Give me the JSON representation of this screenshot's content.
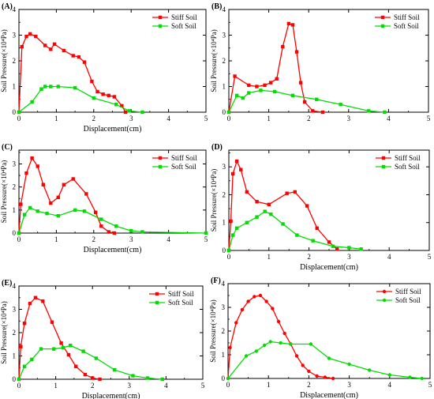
{
  "chart_data": [
    {
      "type": "line",
      "panel_label": "(A)",
      "xlabel": "Displacement(cm)",
      "ylabel": "Soil Pressure(×10⁴Pa)",
      "xlim": [
        0,
        5
      ],
      "ylim": [
        0,
        4
      ],
      "xticks": [
        0,
        1,
        2,
        3,
        4,
        5
      ],
      "yticks": [
        0,
        1,
        2,
        3,
        4
      ],
      "legend_position": "top-right",
      "series": [
        {
          "name": "Stiff Soil",
          "color": "#ff0000",
          "marker": "square",
          "x": [
            0.0,
            0.08,
            0.2,
            0.3,
            0.45,
            0.7,
            0.85,
            0.95,
            1.2,
            1.45,
            1.6,
            1.75,
            1.95,
            2.1,
            2.25,
            2.4,
            2.55,
            2.75,
            2.85
          ],
          "y": [
            0.0,
            2.55,
            2.95,
            3.05,
            2.95,
            2.6,
            2.45,
            2.65,
            2.4,
            2.2,
            2.15,
            1.95,
            1.2,
            0.8,
            0.7,
            0.65,
            0.6,
            0.25,
            0.0
          ]
        },
        {
          "name": "Soft Soil",
          "color": "#00dd00",
          "marker": "square",
          "x": [
            0.0,
            0.35,
            0.6,
            0.7,
            0.85,
            1.05,
            1.5,
            2.0,
            2.6,
            2.95,
            3.3
          ],
          "y": [
            0.0,
            0.4,
            0.9,
            1.0,
            1.0,
            1.0,
            0.95,
            0.55,
            0.3,
            0.05,
            0.0
          ]
        }
      ]
    },
    {
      "type": "line",
      "panel_label": "(B)",
      "xlabel": "",
      "ylabel": "Soil Pressure(×10⁴Pa)",
      "xlim": [
        0,
        5
      ],
      "ylim": [
        0,
        4
      ],
      "xticks": [
        0,
        1,
        2,
        3,
        4,
        5
      ],
      "yticks": [
        0,
        1,
        2,
        3,
        4
      ],
      "legend_position": "top-right",
      "series": [
        {
          "name": "Stiff Soil",
          "color": "#ff0000",
          "marker": "square",
          "x": [
            0.0,
            0.15,
            0.5,
            0.7,
            0.9,
            1.05,
            1.2,
            1.35,
            1.5,
            1.6,
            1.7,
            1.8,
            1.9,
            2.1,
            2.35
          ],
          "y": [
            0.0,
            1.4,
            1.05,
            1.0,
            1.05,
            1.15,
            1.3,
            2.55,
            3.45,
            3.4,
            2.35,
            1.15,
            0.4,
            0.05,
            0.0
          ]
        },
        {
          "name": "Soft Soil",
          "color": "#00dd00",
          "marker": "square",
          "x": [
            0.0,
            0.2,
            0.35,
            0.5,
            0.8,
            1.15,
            1.6,
            2.2,
            2.8,
            3.5,
            3.9
          ],
          "y": [
            0.0,
            0.65,
            0.55,
            0.75,
            0.85,
            0.8,
            0.65,
            0.5,
            0.3,
            0.05,
            0.0
          ]
        }
      ]
    },
    {
      "type": "line",
      "panel_label": "(C)",
      "xlabel": "Displacement(cm)",
      "ylabel": "Soil Pressure(×10⁴Pa)",
      "xlim": [
        0,
        5
      ],
      "ylim": [
        0,
        3.6
      ],
      "xticks": [
        0,
        1,
        2,
        3,
        4,
        5
      ],
      "yticks": [
        0,
        1,
        2,
        3
      ],
      "legend_position": "top-right",
      "series": [
        {
          "name": "Stiff Soil",
          "color": "#ff0000",
          "marker": "square",
          "x": [
            0.0,
            0.05,
            0.2,
            0.35,
            0.5,
            0.65,
            0.85,
            1.05,
            1.2,
            1.45,
            1.8,
            2.05,
            2.2,
            2.4,
            2.55
          ],
          "y": [
            0.0,
            1.25,
            2.6,
            3.25,
            2.9,
            2.1,
            1.3,
            1.55,
            2.1,
            2.35,
            1.7,
            0.9,
            0.3,
            0.05,
            0.0
          ]
        },
        {
          "name": "Soft Soil",
          "color": "#00dd00",
          "marker": "square",
          "x": [
            0.0,
            0.15,
            0.3,
            0.5,
            0.75,
            1.05,
            1.5,
            1.75,
            2.2,
            2.6,
            3.0,
            3.3,
            5.0
          ],
          "y": [
            0.0,
            0.8,
            1.1,
            0.95,
            0.85,
            0.75,
            1.0,
            0.95,
            0.6,
            0.3,
            0.1,
            0.05,
            0.0
          ]
        }
      ]
    },
    {
      "type": "line",
      "panel_label": "(D)",
      "xlabel": "Displacement(cm)",
      "ylabel": "Soil Pressure(×10⁴Pa)",
      "xlim": [
        0,
        5
      ],
      "ylim": [
        0,
        3.6
      ],
      "xticks": [
        0,
        1,
        2,
        3,
        4,
        5
      ],
      "yticks": [
        0,
        1,
        2,
        3
      ],
      "legend_position": "top-right",
      "series": [
        {
          "name": "Stiff Soil",
          "color": "#ff0000",
          "marker": "square",
          "x": [
            0.0,
            0.05,
            0.1,
            0.2,
            0.3,
            0.45,
            0.7,
            1.0,
            1.45,
            1.65,
            1.95,
            2.2,
            2.5,
            2.7
          ],
          "y": [
            0.0,
            1.05,
            2.75,
            3.2,
            2.9,
            2.1,
            1.75,
            1.65,
            2.05,
            2.1,
            1.6,
            0.8,
            0.3,
            0.05
          ]
        },
        {
          "name": "Soft Soil",
          "color": "#00dd00",
          "marker": "square",
          "x": [
            0.0,
            0.1,
            0.2,
            0.45,
            0.7,
            0.9,
            1.05,
            1.35,
            1.7,
            2.1,
            2.6,
            3.0,
            3.3
          ],
          "y": [
            0.0,
            0.55,
            0.8,
            1.0,
            1.2,
            1.4,
            1.3,
            0.95,
            0.55,
            0.35,
            0.15,
            0.1,
            0.05
          ]
        }
      ]
    },
    {
      "type": "line",
      "panel_label": "(E)",
      "xlabel": "Displacement(cm)",
      "ylabel": "Soil Pressure(×10⁴Pa)",
      "xlim": [
        0,
        5
      ],
      "ylim": [
        0,
        4
      ],
      "xticks": [
        0,
        1,
        2,
        3,
        4,
        5
      ],
      "yticks": [
        0,
        1,
        2,
        3,
        4
      ],
      "legend_position": "top-right",
      "series": [
        {
          "name": "Stiff Soil",
          "color": "#ff0000",
          "marker": "square",
          "x": [
            0.0,
            0.05,
            0.15,
            0.3,
            0.45,
            0.65,
            0.9,
            1.15,
            1.35,
            1.55,
            1.8,
            2.0,
            2.2
          ],
          "y": [
            0.0,
            1.4,
            2.4,
            3.25,
            3.5,
            3.35,
            2.45,
            1.55,
            1.05,
            0.55,
            0.2,
            0.05,
            0.0
          ]
        },
        {
          "name": "Soft Soil",
          "color": "#00dd00",
          "marker": "square",
          "x": [
            0.0,
            0.15,
            0.35,
            0.6,
            0.95,
            1.2,
            1.4,
            1.75,
            2.1,
            2.6,
            3.1,
            3.5,
            3.9
          ],
          "y": [
            0.0,
            0.55,
            0.85,
            1.3,
            1.3,
            1.35,
            1.45,
            1.2,
            0.9,
            0.4,
            0.15,
            0.05,
            0.0
          ]
        }
      ]
    },
    {
      "type": "line",
      "panel_label": "(F)",
      "xlabel": "Displacement(cm)",
      "ylabel": "Soil Pressure(×10⁴Pa)",
      "xlim": [
        0,
        5
      ],
      "ylim": [
        0,
        4
      ],
      "xticks": [
        0,
        1,
        2,
        3,
        4,
        5
      ],
      "yticks": [
        0,
        1,
        2,
        3,
        4
      ],
      "legend_position": "top-right",
      "series": [
        {
          "name": "Stiff Soil",
          "color": "#ff0000",
          "marker": "circle",
          "x": [
            0.0,
            0.05,
            0.2,
            0.35,
            0.5,
            0.65,
            0.8,
            0.95,
            1.1,
            1.25,
            1.4,
            1.55,
            1.7,
            1.85,
            2.0,
            2.2,
            2.4,
            2.6
          ],
          "y": [
            0.0,
            1.3,
            2.35,
            2.9,
            3.25,
            3.45,
            3.5,
            3.25,
            2.95,
            2.4,
            1.9,
            1.45,
            0.95,
            0.55,
            0.3,
            0.1,
            0.05,
            0.0
          ]
        },
        {
          "name": "Soft Soil",
          "color": "#00dd00",
          "marker": "circle",
          "x": [
            0.0,
            0.45,
            0.7,
            0.9,
            1.05,
            1.3,
            1.55,
            2.05,
            2.5,
            3.0,
            3.5,
            4.0,
            4.5,
            4.8
          ],
          "y": [
            0.0,
            0.95,
            1.15,
            1.4,
            1.55,
            1.5,
            1.45,
            1.45,
            0.85,
            0.6,
            0.35,
            0.15,
            0.05,
            0.0
          ]
        }
      ]
    }
  ]
}
